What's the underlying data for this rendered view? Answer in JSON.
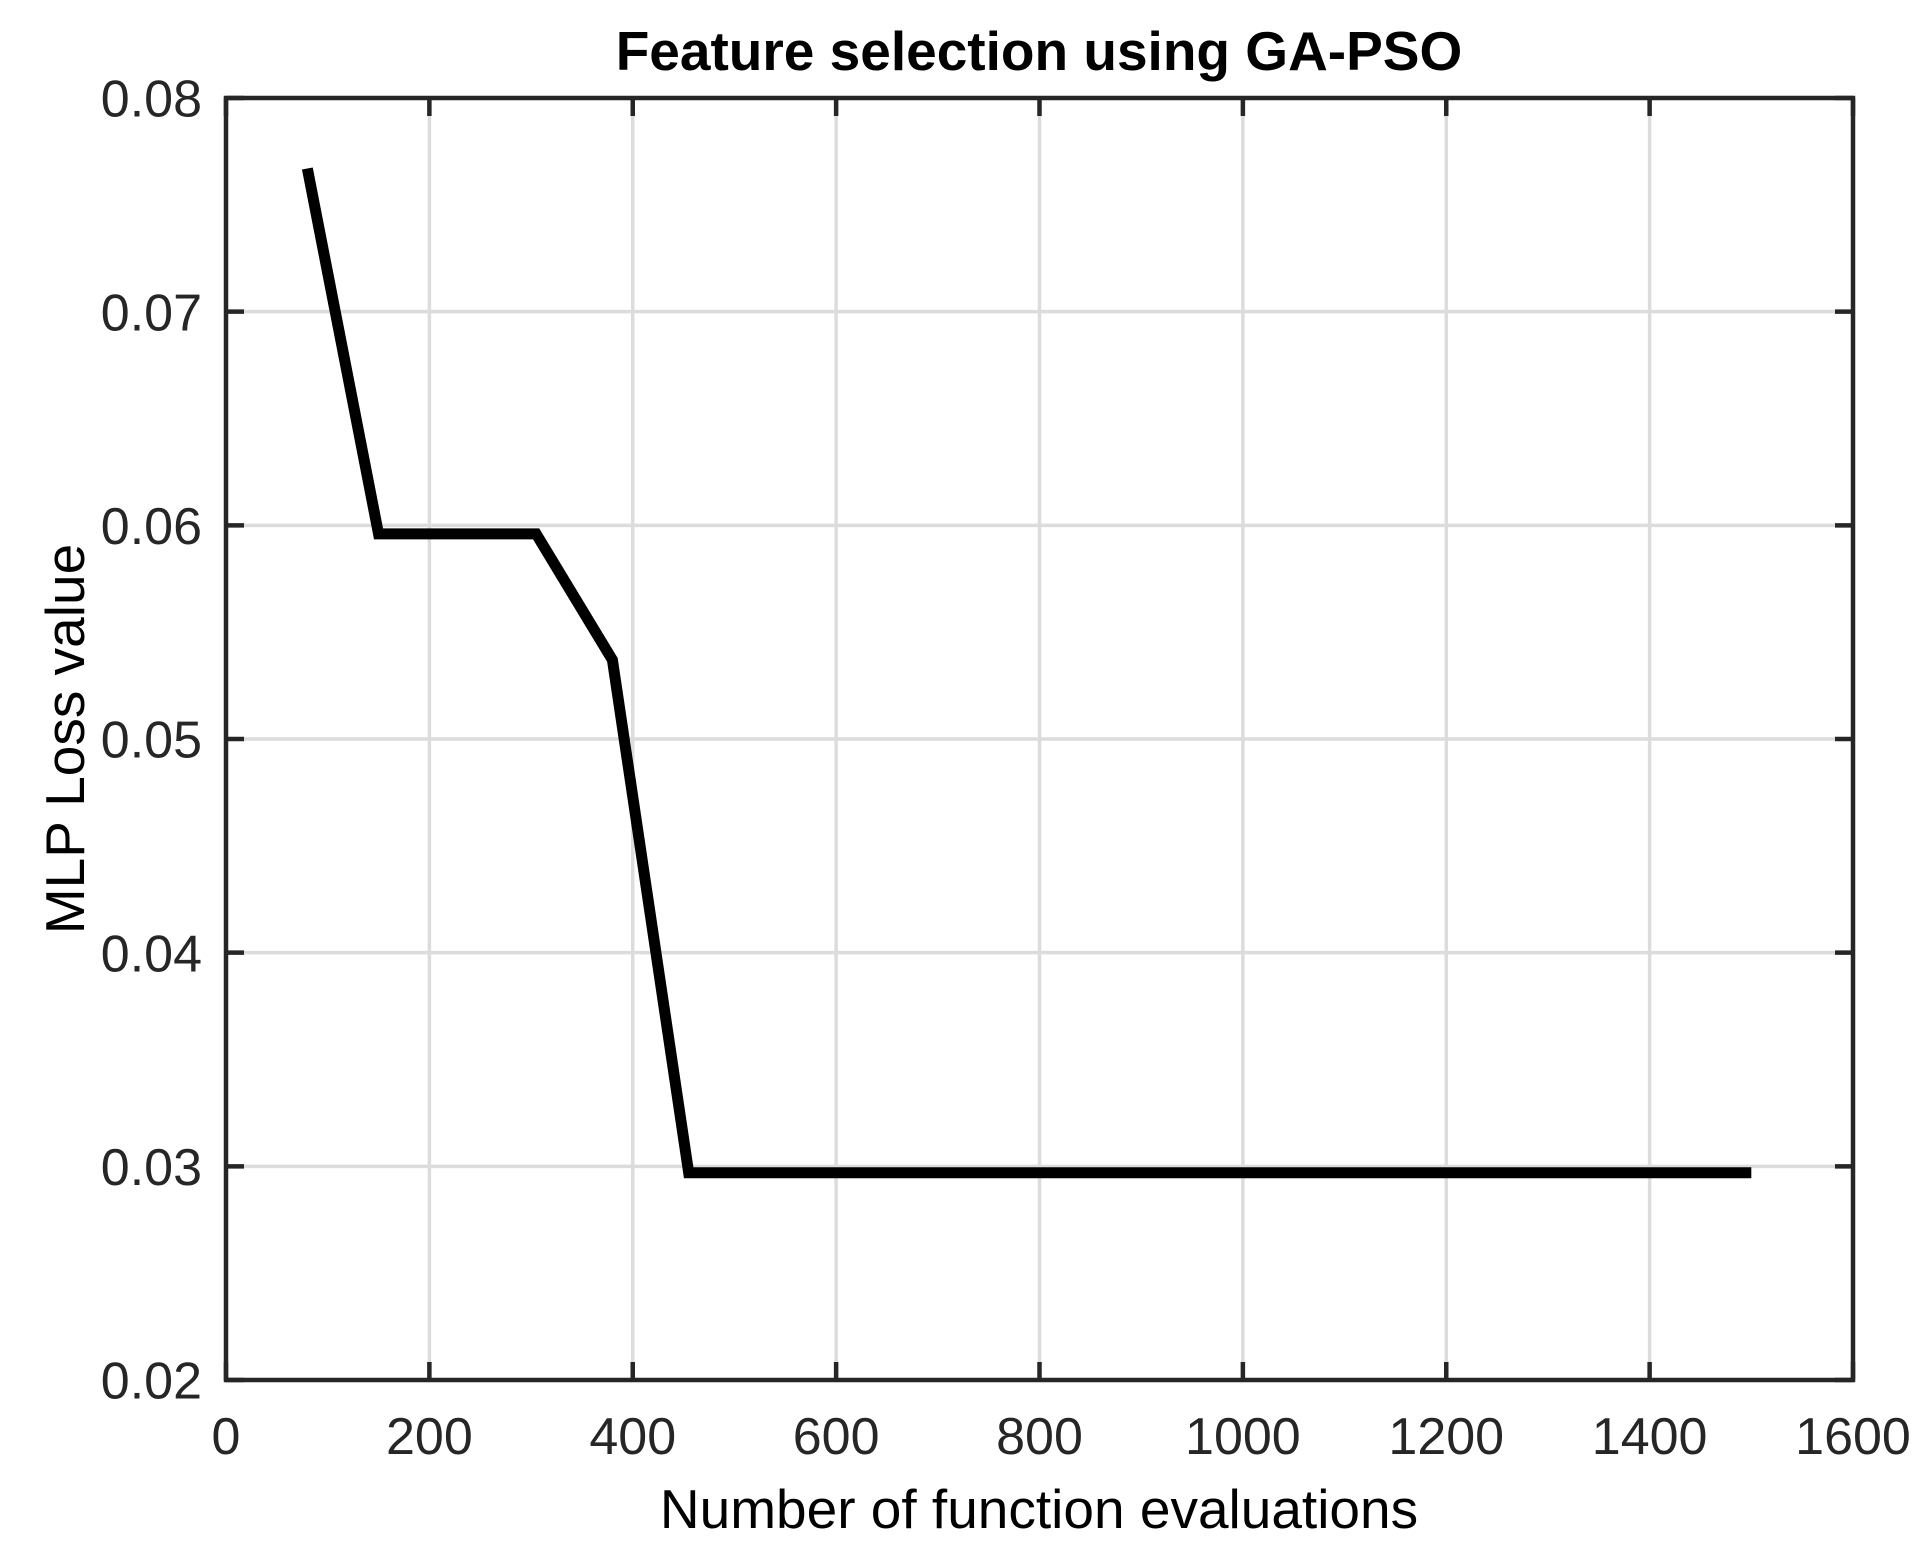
{
  "chart_data": {
    "type": "line",
    "title": "Feature selection using GA-PSO",
    "xlabel": "Number of function evaluations",
    "ylabel": "MLP Loss value",
    "xlim": [
      0,
      1600
    ],
    "ylim": [
      0.02,
      0.08
    ],
    "x_ticks": [
      0,
      200,
      400,
      600,
      800,
      1000,
      1200,
      1400,
      1600
    ],
    "x_tick_labels": [
      "0",
      "200",
      "400",
      "600",
      "800",
      "1000",
      "1200",
      "1400",
      "1600"
    ],
    "y_ticks": [
      0.02,
      0.03,
      0.04,
      0.05,
      0.06,
      0.07,
      0.08
    ],
    "y_tick_labels": [
      "0.02",
      "0.03",
      "0.04",
      "0.05",
      "0.06",
      "0.07",
      "0.08"
    ],
    "grid": true,
    "legend_position": "none",
    "series": [
      {
        "color": "#000000",
        "line_width": 11,
        "points": [
          [
            80,
            0.0767
          ],
          [
            150,
            0.0596
          ],
          [
            305,
            0.0596
          ],
          [
            380,
            0.0537
          ],
          [
            455,
            0.0297
          ],
          [
            1500,
            0.0297
          ]
        ]
      }
    ],
    "colors": {
      "background": "#ffffff",
      "grid": "#dcdcdc",
      "axis": "#262626",
      "tick_text": "#262626",
      "label_text": "#000000",
      "line": "#000000"
    }
  }
}
